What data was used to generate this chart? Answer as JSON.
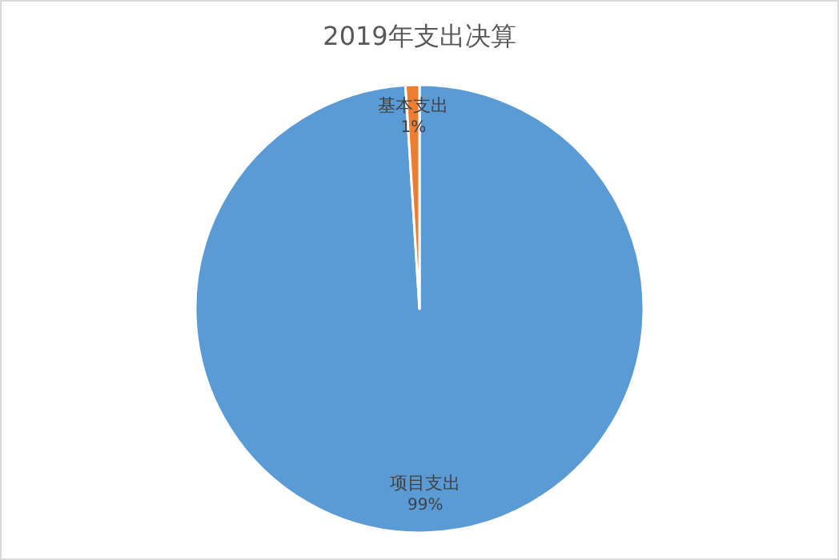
{
  "chart_data": {
    "type": "pie",
    "title": "2019年支出决算",
    "categories": [
      "项目支出",
      "基本支出"
    ],
    "values": [
      99,
      1
    ],
    "colors": [
      "#5b9bd5",
      "#ed7d31"
    ],
    "value_labels": [
      "99%",
      "1%"
    ]
  }
}
